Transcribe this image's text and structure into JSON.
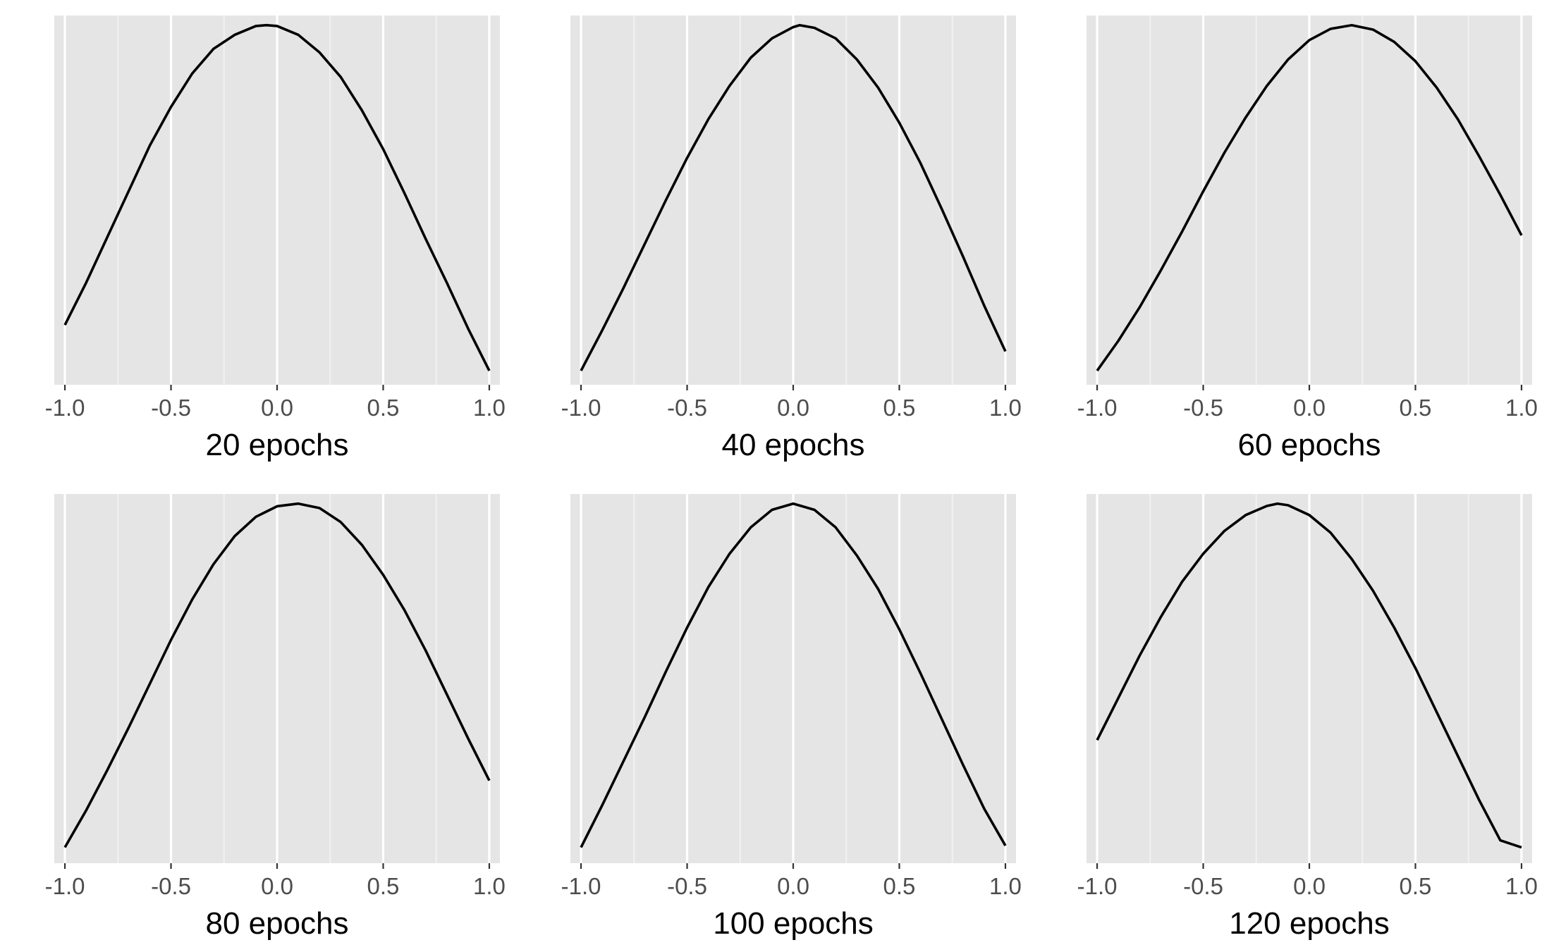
{
  "colors": {
    "panel_background": "#e5e5e5",
    "grid_major": "#ffffff",
    "grid_minor": "#f2f2f2",
    "curve": "#000000",
    "tick_text": "#4d4d4d",
    "tick_mark": "#333333",
    "title_text": "#000000"
  },
  "chart_data": [
    {
      "type": "line",
      "title": "20 epochs",
      "xlim": [
        -1.05,
        1.05
      ],
      "ylim": [
        0,
        1.05
      ],
      "x_ticks": [
        -1.0,
        -0.5,
        0.0,
        0.5,
        1.0
      ],
      "x_tick_labels": [
        "-1.0",
        "-0.5",
        "0.0",
        "0.5",
        "1.0"
      ],
      "y_axis_shown": false,
      "grid": "vertical",
      "x": [
        -1.0,
        -0.9,
        -0.8,
        -0.7,
        -0.6,
        -0.5,
        -0.4,
        -0.3,
        -0.2,
        -0.1,
        -0.05,
        0.0,
        0.1,
        0.2,
        0.3,
        0.4,
        0.5,
        0.6,
        0.7,
        0.8,
        0.9,
        1.0
      ],
      "values": [
        0.17,
        0.29,
        0.42,
        0.55,
        0.68,
        0.79,
        0.885,
        0.955,
        0.995,
        1.02,
        1.0225,
        1.02,
        0.995,
        0.945,
        0.875,
        0.78,
        0.67,
        0.545,
        0.415,
        0.29,
        0.16,
        0.04
      ]
    },
    {
      "type": "line",
      "title": "40 epochs",
      "xlim": [
        -1.05,
        1.05
      ],
      "ylim": [
        0,
        1.05
      ],
      "x_ticks": [
        -1.0,
        -0.5,
        0.0,
        0.5,
        1.0
      ],
      "x_tick_labels": [
        "-1.0",
        "-0.5",
        "0.0",
        "0.5",
        "1.0"
      ],
      "y_axis_shown": false,
      "grid": "vertical",
      "x": [
        -1.0,
        -0.9,
        -0.8,
        -0.7,
        -0.6,
        -0.5,
        -0.4,
        -0.3,
        -0.2,
        -0.1,
        0.0,
        0.03,
        0.1,
        0.2,
        0.3,
        0.4,
        0.5,
        0.6,
        0.7,
        0.8,
        0.9,
        1.0
      ],
      "values": [
        0.04,
        0.155,
        0.275,
        0.4,
        0.525,
        0.645,
        0.755,
        0.85,
        0.93,
        0.985,
        1.017,
        1.0225,
        1.015,
        0.985,
        0.925,
        0.845,
        0.745,
        0.63,
        0.5,
        0.365,
        0.225,
        0.095
      ]
    },
    {
      "type": "line",
      "title": "60 epochs",
      "xlim": [
        -1.05,
        1.05
      ],
      "ylim": [
        0,
        1.05
      ],
      "x_ticks": [
        -1.0,
        -0.5,
        0.0,
        0.5,
        1.0
      ],
      "x_tick_labels": [
        "-1.0",
        "-0.5",
        "0.0",
        "0.5",
        "1.0"
      ],
      "y_axis_shown": false,
      "grid": "vertical",
      "x": [
        -1.0,
        -0.9,
        -0.8,
        -0.7,
        -0.6,
        -0.5,
        -0.4,
        -0.3,
        -0.2,
        -0.1,
        0.0,
        0.1,
        0.2,
        0.3,
        0.4,
        0.5,
        0.6,
        0.7,
        0.8,
        0.9,
        1.0
      ],
      "values": [
        0.04,
        0.125,
        0.22,
        0.325,
        0.435,
        0.55,
        0.66,
        0.76,
        0.85,
        0.925,
        0.98,
        1.012,
        1.0225,
        1.01,
        0.975,
        0.92,
        0.845,
        0.755,
        0.65,
        0.54,
        0.425
      ]
    },
    {
      "type": "line",
      "title": "80 epochs",
      "xlim": [
        -1.05,
        1.05
      ],
      "ylim": [
        0,
        1.05
      ],
      "x_ticks": [
        -1.0,
        -0.5,
        0.0,
        0.5,
        1.0
      ],
      "x_tick_labels": [
        "-1.0",
        "-0.5",
        "0.0",
        "0.5",
        "1.0"
      ],
      "y_axis_shown": false,
      "grid": "vertical",
      "x": [
        -1.0,
        -0.9,
        -0.8,
        -0.7,
        -0.6,
        -0.5,
        -0.4,
        -0.3,
        -0.2,
        -0.1,
        0.0,
        0.1,
        0.2,
        0.3,
        0.4,
        0.5,
        0.6,
        0.7,
        0.8,
        0.9,
        1.0
      ],
      "values": [
        0.045,
        0.15,
        0.265,
        0.385,
        0.51,
        0.635,
        0.75,
        0.85,
        0.93,
        0.985,
        1.015,
        1.0225,
        1.01,
        0.97,
        0.905,
        0.82,
        0.72,
        0.605,
        0.48,
        0.355,
        0.235
      ]
    },
    {
      "type": "line",
      "title": "100 epochs",
      "xlim": [
        -1.05,
        1.05
      ],
      "ylim": [
        0,
        1.05
      ],
      "x_ticks": [
        -1.0,
        -0.5,
        0.0,
        0.5,
        1.0
      ],
      "x_tick_labels": [
        "-1.0",
        "-0.5",
        "0.0",
        "0.5",
        "1.0"
      ],
      "y_axis_shown": false,
      "grid": "vertical",
      "x": [
        -1.0,
        -0.9,
        -0.8,
        -0.7,
        -0.6,
        -0.5,
        -0.4,
        -0.3,
        -0.2,
        -0.1,
        0.0,
        0.1,
        0.2,
        0.3,
        0.4,
        0.5,
        0.6,
        0.7,
        0.8,
        0.9,
        1.0
      ],
      "values": [
        0.045,
        0.165,
        0.29,
        0.415,
        0.545,
        0.67,
        0.785,
        0.88,
        0.955,
        1.005,
        1.0225,
        1.005,
        0.955,
        0.875,
        0.78,
        0.665,
        0.54,
        0.41,
        0.28,
        0.155,
        0.05
      ]
    },
    {
      "type": "line",
      "title": "120 epochs",
      "xlim": [
        -1.05,
        1.05
      ],
      "ylim": [
        0,
        1.05
      ],
      "x_ticks": [
        -1.0,
        -0.5,
        0.0,
        0.5,
        1.0
      ],
      "x_tick_labels": [
        "-1.0",
        "-0.5",
        "0.0",
        "0.5",
        "1.0"
      ],
      "y_axis_shown": false,
      "grid": "vertical",
      "x": [
        -1.0,
        -0.9,
        -0.8,
        -0.7,
        -0.6,
        -0.5,
        -0.4,
        -0.3,
        -0.2,
        -0.15,
        -0.1,
        0.0,
        0.1,
        0.2,
        0.3,
        0.4,
        0.5,
        0.6,
        0.7,
        0.8,
        0.9,
        1.0
      ],
      "values": [
        0.35,
        0.47,
        0.59,
        0.7,
        0.8,
        0.88,
        0.945,
        0.99,
        1.016,
        1.0225,
        1.018,
        0.99,
        0.94,
        0.865,
        0.775,
        0.67,
        0.555,
        0.43,
        0.305,
        0.18,
        0.065,
        0.045
      ]
    }
  ]
}
